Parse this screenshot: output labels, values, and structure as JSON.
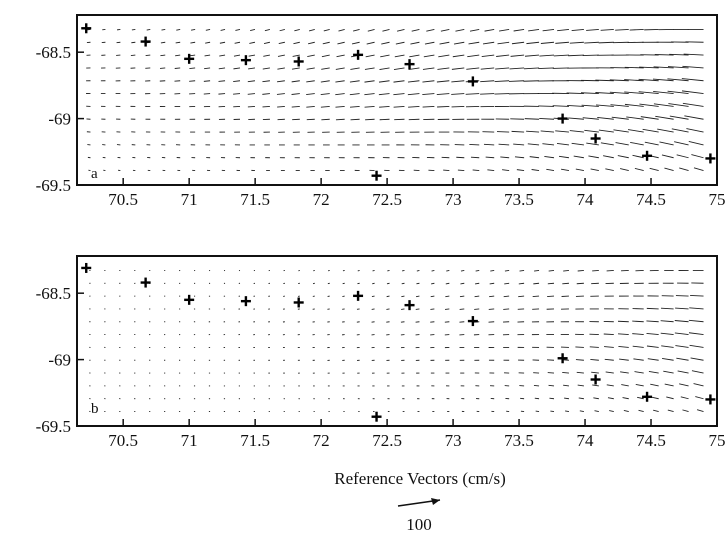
{
  "chart_data": [
    {
      "type": "vector-field",
      "panel": "a",
      "xlim": [
        70.15,
        75
      ],
      "ylim": [
        -69.5,
        -68.22
      ],
      "xticks": [
        "70.5",
        "71",
        "71.5",
        "72",
        "72.5",
        "73",
        "73.5",
        "74",
        "74.5",
        "75"
      ],
      "yticks": [
        "-68.5",
        "-69",
        "-69.5"
      ],
      "grid": false,
      "stations": [
        {
          "x": 70.22,
          "y": -68.32
        },
        {
          "x": 70.67,
          "y": -68.42
        },
        {
          "x": 71.0,
          "y": -68.55
        },
        {
          "x": 71.43,
          "y": -68.56
        },
        {
          "x": 71.83,
          "y": -68.57
        },
        {
          "x": 72.28,
          "y": -68.52
        },
        {
          "x": 72.67,
          "y": -68.59
        },
        {
          "x": 73.15,
          "y": -68.72
        },
        {
          "x": 73.83,
          "y": -69.0
        },
        {
          "x": 74.08,
          "y": -69.15
        },
        {
          "x": 74.47,
          "y": -69.28
        },
        {
          "x": 74.95,
          "y": -69.3
        },
        {
          "x": 72.42,
          "y": -69.43
        }
      ],
      "strength": 1.0
    },
    {
      "type": "vector-field",
      "panel": "b",
      "xlim": [
        70.15,
        75
      ],
      "ylim": [
        -69.5,
        -68.22
      ],
      "xticks": [
        "70.5",
        "71",
        "71.5",
        "72",
        "72.5",
        "73",
        "73.5",
        "74",
        "74.5",
        "75"
      ],
      "yticks": [
        "-68.5",
        "-69",
        "-69.5"
      ],
      "grid": false,
      "stations": [
        {
          "x": 70.22,
          "y": -68.31
        },
        {
          "x": 70.67,
          "y": -68.42
        },
        {
          "x": 71.0,
          "y": -68.55
        },
        {
          "x": 71.43,
          "y": -68.56
        },
        {
          "x": 71.83,
          "y": -68.57
        },
        {
          "x": 72.28,
          "y": -68.52
        },
        {
          "x": 72.67,
          "y": -68.59
        },
        {
          "x": 73.15,
          "y": -68.71
        },
        {
          "x": 73.83,
          "y": -68.99
        },
        {
          "x": 74.08,
          "y": -69.15
        },
        {
          "x": 74.47,
          "y": -69.28
        },
        {
          "x": 74.95,
          "y": -69.3
        },
        {
          "x": 72.42,
          "y": -69.43
        }
      ],
      "strength": 0.55
    }
  ],
  "xlabel": "Reference Vectors (cm/s)",
  "reference_vector": {
    "value": 100,
    "label": "100"
  },
  "labels": {
    "panel_a": "a",
    "panel_b": "b"
  }
}
